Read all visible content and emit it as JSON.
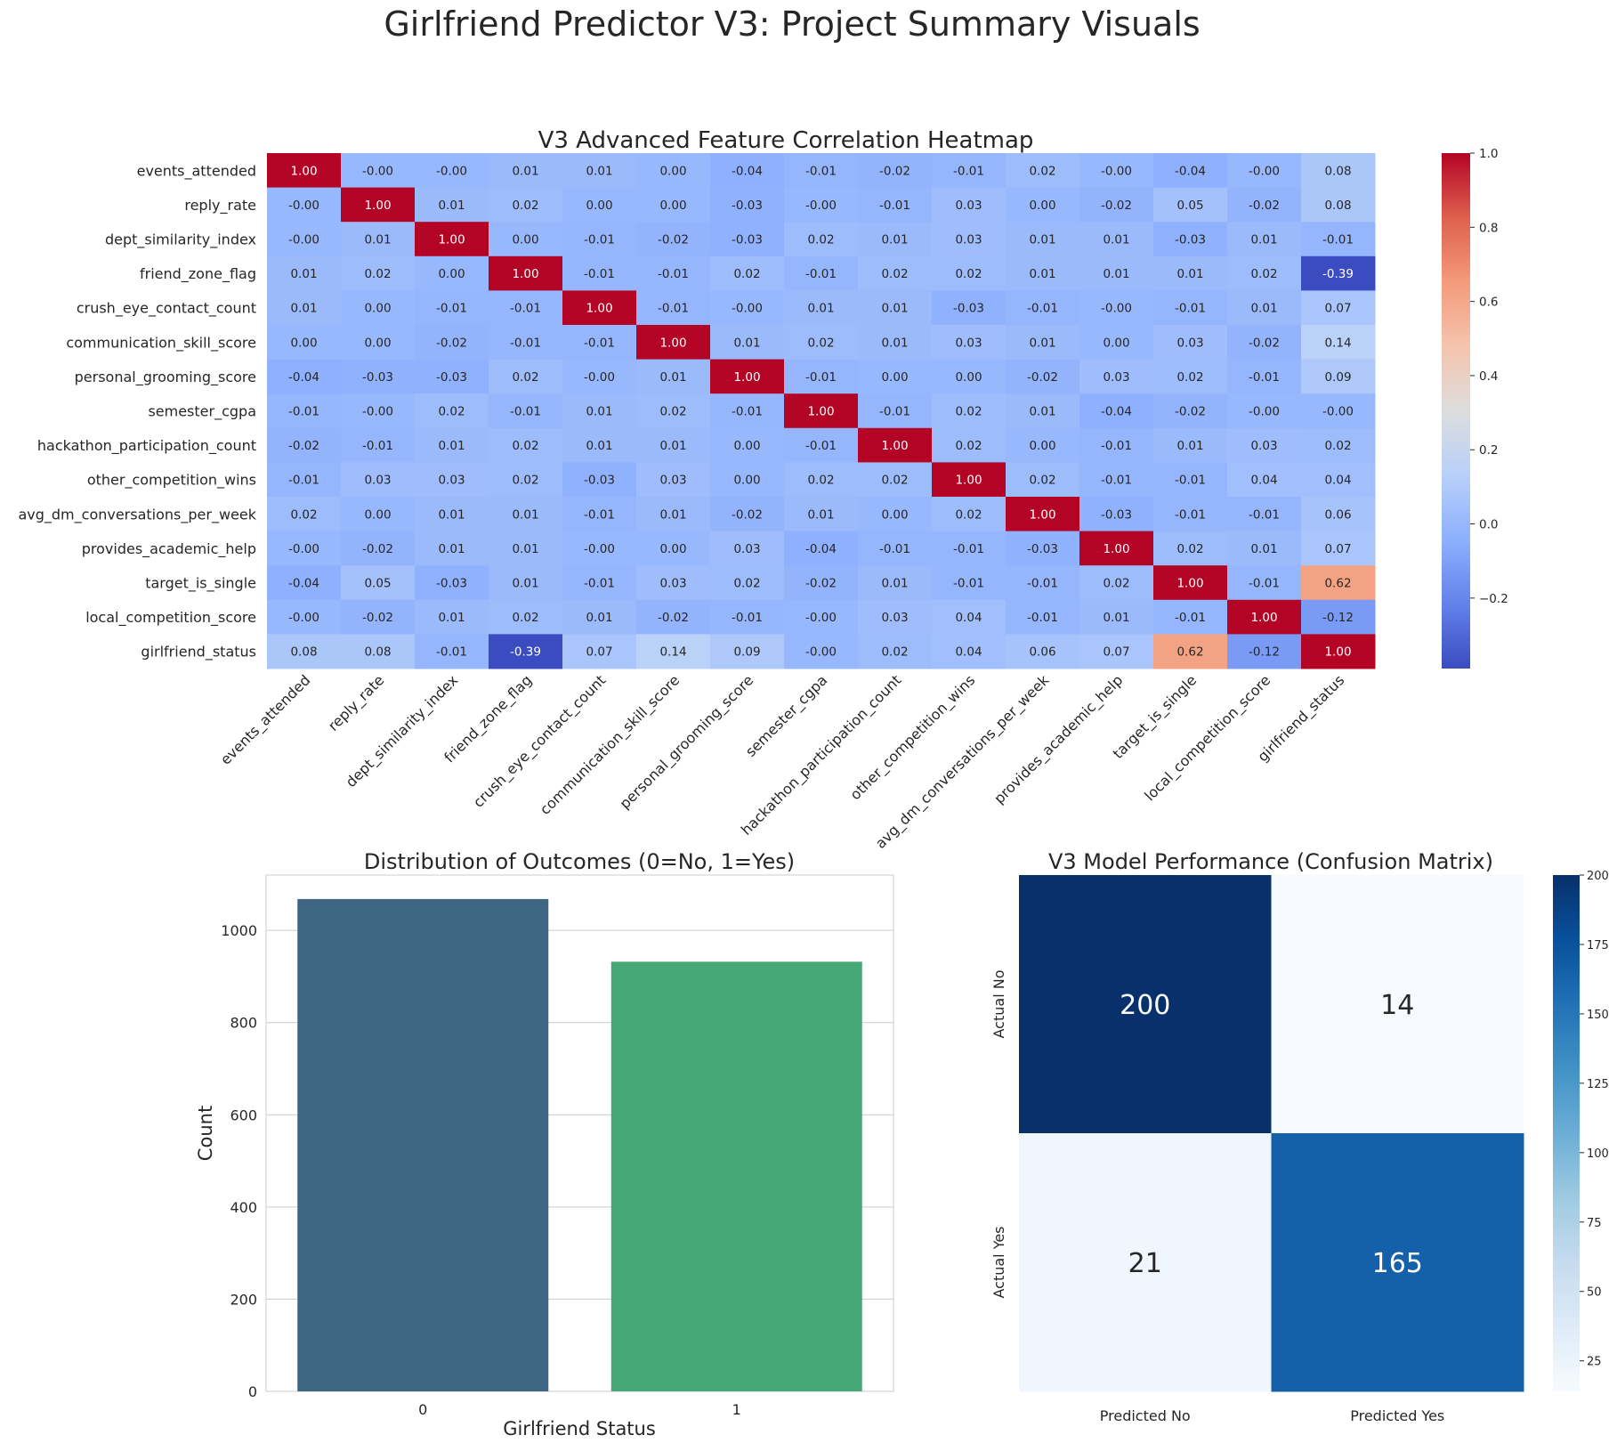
{
  "figure": {
    "title": "Girlfriend Predictor V3: Project Summary Visuals"
  },
  "chart_data": [
    {
      "type": "heatmap",
      "title": "V3 Advanced Feature Correlation Heatmap",
      "colormap": "coolwarm",
      "vmin": -0.39,
      "vmax": 1.0,
      "colorbar_ticks": [
        1.0,
        0.8,
        0.6,
        0.4,
        0.2,
        0.0,
        -0.2
      ],
      "colorbar_tick_labels": [
        "1.0",
        "0.8",
        "0.6",
        "0.4",
        "0.2",
        "0.0",
        "−0.2"
      ],
      "labels": [
        "events_attended",
        "reply_rate",
        "dept_similarity_index",
        "friend_zone_flag",
        "crush_eye_contact_count",
        "communication_skill_score",
        "personal_grooming_score",
        "semester_cgpa",
        "hackathon_participation_count",
        "other_competition_wins",
        "avg_dm_conversations_per_week",
        "provides_academic_help",
        "target_is_single",
        "local_competition_score",
        "girlfriend_status"
      ],
      "values": [
        [
          1.0,
          -0.0,
          -0.0,
          0.01,
          0.01,
          0.0,
          -0.04,
          -0.01,
          -0.02,
          -0.01,
          0.02,
          -0.0,
          -0.04,
          -0.0,
          0.08
        ],
        [
          -0.0,
          1.0,
          0.01,
          0.02,
          0.0,
          0.0,
          -0.03,
          -0.0,
          -0.01,
          0.03,
          0.0,
          -0.02,
          0.05,
          -0.02,
          0.08
        ],
        [
          -0.0,
          0.01,
          1.0,
          0.0,
          -0.01,
          -0.02,
          -0.03,
          0.02,
          0.01,
          0.03,
          0.01,
          0.01,
          -0.03,
          0.01,
          -0.01
        ],
        [
          0.01,
          0.02,
          0.0,
          1.0,
          -0.01,
          -0.01,
          0.02,
          -0.01,
          0.02,
          0.02,
          0.01,
          0.01,
          0.01,
          0.02,
          -0.39
        ],
        [
          0.01,
          0.0,
          -0.01,
          -0.01,
          1.0,
          -0.01,
          -0.0,
          0.01,
          0.01,
          -0.03,
          -0.01,
          -0.0,
          -0.01,
          0.01,
          0.07
        ],
        [
          0.0,
          0.0,
          -0.02,
          -0.01,
          -0.01,
          1.0,
          0.01,
          0.02,
          0.01,
          0.03,
          0.01,
          0.0,
          0.03,
          -0.02,
          0.14
        ],
        [
          -0.04,
          -0.03,
          -0.03,
          0.02,
          -0.0,
          0.01,
          1.0,
          -0.01,
          0.0,
          0.0,
          -0.02,
          0.03,
          0.02,
          -0.01,
          0.09
        ],
        [
          -0.01,
          -0.0,
          0.02,
          -0.01,
          0.01,
          0.02,
          -0.01,
          1.0,
          -0.01,
          0.02,
          0.01,
          -0.04,
          -0.02,
          -0.0,
          -0.0
        ],
        [
          -0.02,
          -0.01,
          0.01,
          0.02,
          0.01,
          0.01,
          0.0,
          -0.01,
          1.0,
          0.02,
          0.0,
          -0.01,
          0.01,
          0.03,
          0.02
        ],
        [
          -0.01,
          0.03,
          0.03,
          0.02,
          -0.03,
          0.03,
          0.0,
          0.02,
          0.02,
          1.0,
          0.02,
          -0.01,
          -0.01,
          0.04,
          0.04
        ],
        [
          0.02,
          0.0,
          0.01,
          0.01,
          -0.01,
          0.01,
          -0.02,
          0.01,
          0.0,
          0.02,
          1.0,
          -0.03,
          -0.01,
          -0.01,
          0.06
        ],
        [
          -0.0,
          -0.02,
          0.01,
          0.01,
          -0.0,
          0.0,
          0.03,
          -0.04,
          -0.01,
          -0.01,
          -0.03,
          1.0,
          0.02,
          0.01,
          0.07
        ],
        [
          -0.04,
          0.05,
          -0.03,
          0.01,
          -0.01,
          0.03,
          0.02,
          -0.02,
          0.01,
          -0.01,
          -0.01,
          0.02,
          1.0,
          -0.01,
          0.62
        ],
        [
          -0.0,
          -0.02,
          0.01,
          0.02,
          0.01,
          -0.02,
          -0.01,
          -0.0,
          0.03,
          0.04,
          -0.01,
          0.01,
          -0.01,
          1.0,
          -0.12
        ],
        [
          0.08,
          0.08,
          -0.01,
          -0.39,
          0.07,
          0.14,
          0.09,
          -0.0,
          0.02,
          0.04,
          0.06,
          0.07,
          0.62,
          -0.12,
          1.0
        ]
      ],
      "cell_labels": [
        [
          "1.00",
          "-0.00",
          "-0.00",
          "0.01",
          "0.01",
          "0.00",
          "-0.04",
          "-0.01",
          "-0.02",
          "-0.01",
          "0.02",
          "-0.00",
          "-0.04",
          "-0.00",
          "0.08"
        ],
        [
          "-0.00",
          "1.00",
          "0.01",
          "0.02",
          "0.00",
          "0.00",
          "-0.03",
          "-0.00",
          "-0.01",
          "0.03",
          "0.00",
          "-0.02",
          "0.05",
          "-0.02",
          "0.08"
        ],
        [
          "-0.00",
          "0.01",
          "1.00",
          "0.00",
          "-0.01",
          "-0.02",
          "-0.03",
          "0.02",
          "0.01",
          "0.03",
          "0.01",
          "0.01",
          "-0.03",
          "0.01",
          "-0.01"
        ],
        [
          "0.01",
          "0.02",
          "0.00",
          "1.00",
          "-0.01",
          "-0.01",
          "0.02",
          "-0.01",
          "0.02",
          "0.02",
          "0.01",
          "0.01",
          "0.01",
          "0.02",
          "-0.39"
        ],
        [
          "0.01",
          "0.00",
          "-0.01",
          "-0.01",
          "1.00",
          "-0.01",
          "-0.00",
          "0.01",
          "0.01",
          "-0.03",
          "-0.01",
          "-0.00",
          "-0.01",
          "0.01",
          "0.07"
        ],
        [
          "0.00",
          "0.00",
          "-0.02",
          "-0.01",
          "-0.01",
          "1.00",
          "0.01",
          "0.02",
          "0.01",
          "0.03",
          "0.01",
          "0.00",
          "0.03",
          "-0.02",
          "0.14"
        ],
        [
          "-0.04",
          "-0.03",
          "-0.03",
          "0.02",
          "-0.00",
          "0.01",
          "1.00",
          "-0.01",
          "0.00",
          "0.00",
          "-0.02",
          "0.03",
          "0.02",
          "-0.01",
          "0.09"
        ],
        [
          "-0.01",
          "-0.00",
          "0.02",
          "-0.01",
          "0.01",
          "0.02",
          "-0.01",
          "1.00",
          "-0.01",
          "0.02",
          "0.01",
          "-0.04",
          "-0.02",
          "-0.00",
          "-0.00"
        ],
        [
          "-0.02",
          "-0.01",
          "0.01",
          "0.02",
          "0.01",
          "0.01",
          "0.00",
          "-0.01",
          "1.00",
          "0.02",
          "0.00",
          "-0.01",
          "0.01",
          "0.03",
          "0.02"
        ],
        [
          "-0.01",
          "0.03",
          "0.03",
          "0.02",
          "-0.03",
          "0.03",
          "0.00",
          "0.02",
          "0.02",
          "1.00",
          "0.02",
          "-0.01",
          "-0.01",
          "0.04",
          "0.04"
        ],
        [
          "0.02",
          "0.00",
          "0.01",
          "0.01",
          "-0.01",
          "0.01",
          "-0.02",
          "0.01",
          "0.00",
          "0.02",
          "1.00",
          "-0.03",
          "-0.01",
          "-0.01",
          "0.06"
        ],
        [
          "-0.00",
          "-0.02",
          "0.01",
          "0.01",
          "-0.00",
          "0.00",
          "0.03",
          "-0.04",
          "-0.01",
          "-0.01",
          "-0.03",
          "1.00",
          "0.02",
          "0.01",
          "0.07"
        ],
        [
          "-0.04",
          "0.05",
          "-0.03",
          "0.01",
          "-0.01",
          "0.03",
          "0.02",
          "-0.02",
          "0.01",
          "-0.01",
          "-0.01",
          "0.02",
          "1.00",
          "-0.01",
          "0.62"
        ],
        [
          "-0.00",
          "-0.02",
          "0.01",
          "0.02",
          "0.01",
          "-0.02",
          "-0.01",
          "-0.00",
          "0.03",
          "0.04",
          "-0.01",
          "0.01",
          "-0.01",
          "1.00",
          "-0.12"
        ],
        [
          "0.08",
          "0.08",
          "-0.01",
          "-0.39",
          "0.07",
          "0.14",
          "0.09",
          "-0.00",
          "0.02",
          "0.04",
          "0.06",
          "0.07",
          "0.62",
          "-0.12",
          "1.00"
        ]
      ]
    },
    {
      "type": "bar",
      "title": "Distribution of Outcomes (0=No, 1=Yes)",
      "xlabel": "Girlfriend Status",
      "ylabel": "Count",
      "categories": [
        "0",
        "1"
      ],
      "values": [
        1068,
        932
      ],
      "colors": [
        "#3e6682",
        "#45a876"
      ],
      "ylim": [
        0,
        1120
      ],
      "yticks": [
        0,
        200,
        400,
        600,
        800,
        1000
      ],
      "grid": "horizontal"
    },
    {
      "type": "heatmap",
      "title": "V3 Model Performance (Confusion Matrix)",
      "colormap": "Blues",
      "row_labels": [
        "Actual No",
        "Actual Yes"
      ],
      "col_labels": [
        "Predicted No",
        "Predicted Yes"
      ],
      "values": [
        [
          200,
          14
        ],
        [
          21,
          165
        ]
      ],
      "vmin": 14,
      "vmax": 200,
      "colorbar_ticks": [
        200,
        175,
        150,
        125,
        100,
        75,
        50,
        25
      ]
    }
  ]
}
